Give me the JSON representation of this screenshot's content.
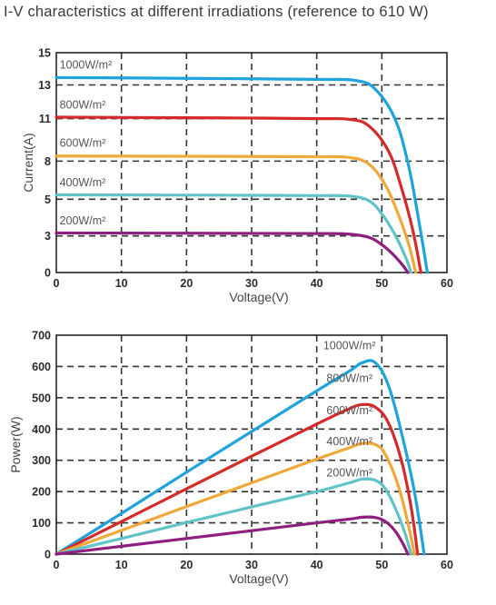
{
  "title": "I-V characteristics at different irradiations (reference to 610 W)",
  "chart_data": [
    {
      "type": "line",
      "xlabel": "Voltage(V)",
      "ylabel": "Current(A)",
      "xlim": [
        0,
        60
      ],
      "ylim": [
        0,
        15
      ],
      "xticks": [
        "0",
        "10",
        "20",
        "30",
        "40",
        "50",
        "60"
      ],
      "yticks": [
        "0",
        "3",
        "5",
        "8",
        "11",
        "13",
        "15"
      ],
      "ytick_values": [
        0,
        2.5,
        5,
        7.6,
        10.5,
        12.8,
        15
      ],
      "grid": true,
      "series": [
        {
          "name": "1000W/m²",
          "color": "#1fa3dc",
          "isc": 13.3,
          "vmp": 46,
          "voc": 57.0,
          "x": [
            0,
            10,
            20,
            30,
            40,
            46,
            49,
            52,
            54,
            55.5,
            57.0
          ],
          "y": [
            13.3,
            13.28,
            13.25,
            13.22,
            13.18,
            13.1,
            12.5,
            10.5,
            7.5,
            4.0,
            0
          ]
        },
        {
          "name": "800W/m²",
          "color": "#d52a2a",
          "isc": 10.6,
          "vmp": 45,
          "voc": 56.0,
          "x": [
            0,
            10,
            20,
            30,
            40,
            45,
            48,
            51,
            53,
            54.8,
            56.0
          ],
          "y": [
            10.6,
            10.58,
            10.56,
            10.54,
            10.5,
            10.45,
            10.0,
            8.3,
            5.8,
            2.8,
            0
          ]
        },
        {
          "name": "600W/m²",
          "color": "#f0a838",
          "isc": 7.95,
          "vmp": 45,
          "voc": 55.2,
          "x": [
            0,
            10,
            20,
            30,
            40,
            45,
            48,
            50.5,
            52.5,
            54.2,
            55.2
          ],
          "y": [
            7.95,
            7.94,
            7.93,
            7.92,
            7.9,
            7.85,
            7.4,
            6.0,
            4.0,
            1.8,
            0
          ]
        },
        {
          "name": "400W/m²",
          "color": "#5fc3c8",
          "isc": 5.3,
          "vmp": 45,
          "voc": 54.5,
          "x": [
            0,
            10,
            20,
            30,
            40,
            45,
            48,
            50,
            52,
            53.6,
            54.5
          ],
          "y": [
            5.3,
            5.29,
            5.28,
            5.27,
            5.25,
            5.22,
            4.9,
            4.0,
            2.6,
            1.1,
            0
          ]
        },
        {
          "name": "200W/m²",
          "color": "#8e1f7f",
          "isc": 2.7,
          "vmp": 45,
          "voc": 54.0,
          "x": [
            0,
            10,
            20,
            30,
            40,
            45,
            48,
            50,
            51.8,
            53.2,
            54.0
          ],
          "y": [
            2.7,
            2.69,
            2.68,
            2.67,
            2.66,
            2.62,
            2.4,
            1.9,
            1.2,
            0.5,
            0
          ]
        }
      ]
    },
    {
      "type": "line",
      "xlabel": "Voltage(V)",
      "ylabel": "Power(W)",
      "xlim": [
        0,
        60
      ],
      "ylim": [
        0,
        700
      ],
      "xticks": [
        "0",
        "10",
        "20",
        "30",
        "40",
        "50",
        "60"
      ],
      "yticks": [
        "0",
        "100",
        "200",
        "300",
        "400",
        "500",
        "600",
        "700"
      ],
      "grid": true,
      "series": [
        {
          "name": "1000W/m²",
          "color": "#1fa3dc",
          "x": [
            0,
            10,
            20,
            30,
            40,
            45,
            47,
            49,
            51,
            53,
            55,
            56.5
          ],
          "y": [
            0,
            130,
            262,
            392,
            522,
            585,
            612,
            612,
            540,
            390,
            200,
            0
          ]
        },
        {
          "name": "800W/m²",
          "color": "#d52a2a",
          "x": [
            0,
            10,
            20,
            30,
            40,
            45,
            47,
            49,
            51,
            53,
            54.5,
            55.5
          ],
          "y": [
            0,
            104,
            209,
            313,
            416,
            465,
            478,
            470,
            420,
            300,
            150,
            0
          ]
        },
        {
          "name": "600W/m²",
          "color": "#f0a838",
          "x": [
            0,
            10,
            20,
            30,
            40,
            45,
            47,
            49,
            50.5,
            52.5,
            54,
            55
          ],
          "y": [
            0,
            76,
            152,
            228,
            304,
            340,
            354,
            350,
            320,
            220,
            100,
            0
          ]
        },
        {
          "name": "400W/m²",
          "color": "#5fc3c8",
          "x": [
            0,
            10,
            20,
            30,
            40,
            45,
            47,
            49,
            50.5,
            52,
            53.5,
            54.5
          ],
          "y": [
            0,
            50,
            101,
            151,
            200,
            228,
            240,
            236,
            210,
            150,
            70,
            0
          ]
        },
        {
          "name": "200W/m²",
          "color": "#8e1f7f",
          "x": [
            0,
            10,
            20,
            30,
            40,
            45,
            47,
            49,
            50.5,
            52,
            53.2,
            54
          ],
          "y": [
            0,
            25,
            50,
            75,
            100,
            112,
            118,
            117,
            105,
            75,
            35,
            0
          ]
        }
      ]
    }
  ]
}
